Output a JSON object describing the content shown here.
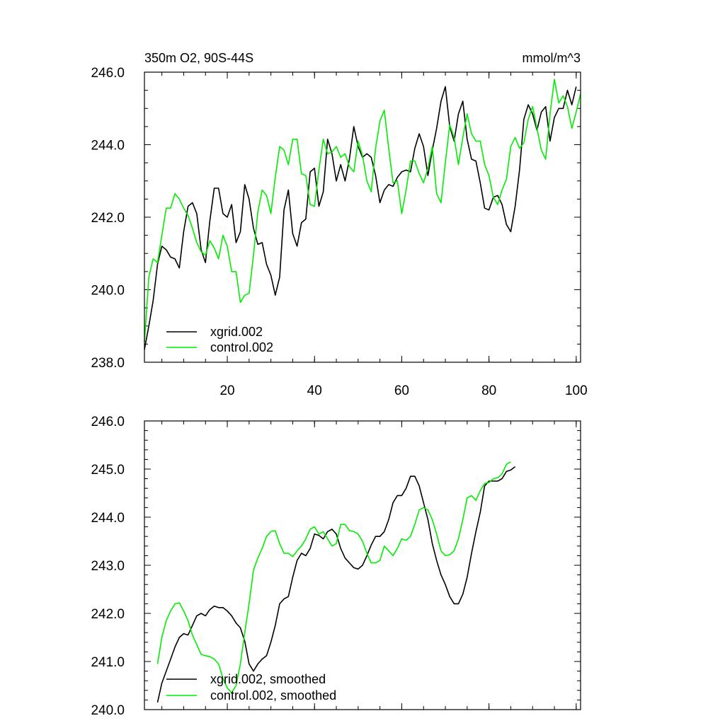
{
  "chart_data": [
    {
      "type": "line",
      "title": "350m O2, 90S-44S",
      "units_label": "mmol/m^3",
      "xlim": [
        1,
        101
      ],
      "ylim": [
        238.0,
        246.0
      ],
      "x_ticks": [
        20,
        40,
        60,
        80,
        100
      ],
      "x_tick_labels": [
        "20",
        "40",
        "60",
        "80",
        "100"
      ],
      "y_ticks": [
        238.0,
        240.0,
        242.0,
        244.0,
        246.0
      ],
      "y_tick_labels": [
        "238.0",
        "240.0",
        "242.0",
        "244.0",
        "246.0"
      ],
      "legend_position": "bottom-left",
      "grid": false,
      "x": [
        1,
        2,
        3,
        4,
        5,
        6,
        7,
        8,
        9,
        10,
        11,
        12,
        13,
        14,
        15,
        16,
        17,
        18,
        19,
        20,
        21,
        22,
        23,
        24,
        25,
        26,
        27,
        28,
        29,
        30,
        31,
        32,
        33,
        34,
        35,
        36,
        37,
        38,
        39,
        40,
        41,
        42,
        43,
        44,
        45,
        46,
        47,
        48,
        49,
        50,
        51,
        52,
        53,
        54,
        55,
        56,
        57,
        58,
        59,
        60,
        61,
        62,
        63,
        64,
        65,
        66,
        67,
        68,
        69,
        70,
        71,
        72,
        73,
        74,
        75,
        76,
        77,
        78,
        79,
        80,
        81,
        82,
        83,
        84,
        85,
        86,
        87,
        88,
        89,
        90,
        91,
        92,
        93,
        94,
        95,
        96,
        97,
        98,
        99,
        100,
        101
      ],
      "series": [
        {
          "name": "xgrid.002",
          "color": "#000000",
          "values": [
            238.35,
            239.0,
            239.7,
            240.7,
            241.2,
            241.1,
            240.9,
            240.85,
            240.6,
            241.6,
            242.3,
            242.4,
            242.1,
            241.1,
            240.75,
            241.9,
            242.8,
            242.8,
            242.1,
            242.0,
            242.35,
            241.3,
            241.6,
            242.9,
            242.5,
            241.7,
            241.25,
            241.3,
            240.7,
            240.4,
            239.85,
            240.35,
            242.2,
            242.75,
            241.55,
            241.2,
            241.85,
            241.95,
            243.25,
            243.35,
            242.3,
            242.7,
            244.15,
            243.75,
            243.0,
            243.45,
            243.0,
            243.6,
            244.5,
            243.95,
            243.65,
            243.75,
            243.65,
            243.15,
            242.4,
            242.75,
            242.9,
            242.85,
            243.1,
            243.25,
            243.3,
            243.25,
            243.9,
            244.3,
            243.95,
            243.15,
            243.85,
            244.45,
            245.2,
            245.6,
            244.5,
            244.1,
            244.85,
            245.2,
            244.15,
            243.6,
            243.55,
            242.95,
            242.25,
            242.2,
            242.55,
            242.6,
            242.35,
            241.8,
            241.6,
            242.3,
            243.3,
            244.7,
            245.1,
            244.85,
            244.4,
            244.9,
            245.05,
            244.1,
            244.75,
            245.0,
            245.0,
            245.5,
            245.1,
            245.6,
            null
          ]
        },
        {
          "name": "control.002",
          "color": "#00ee00",
          "values": [
            238.55,
            240.35,
            240.85,
            240.75,
            241.5,
            242.25,
            242.25,
            242.65,
            242.5,
            242.25,
            242.05,
            241.7,
            241.3,
            241.05,
            240.95,
            241.35,
            241.15,
            240.85,
            241.5,
            241.2,
            240.5,
            240.5,
            239.65,
            239.85,
            239.9,
            240.95,
            242.15,
            242.75,
            242.6,
            242.1,
            243.1,
            243.95,
            243.85,
            243.45,
            244.15,
            244.15,
            243.2,
            243.15,
            242.35,
            242.3,
            243.3,
            244.15,
            243.75,
            243.8,
            243.95,
            243.65,
            243.75,
            243.4,
            243.25,
            244.1,
            243.7,
            243.0,
            242.7,
            243.9,
            244.65,
            244.95,
            243.9,
            242.95,
            243.0,
            242.1,
            242.75,
            243.55,
            243.55,
            243.2,
            242.95,
            243.35,
            243.95,
            242.65,
            242.4,
            243.5,
            244.55,
            244.2,
            243.45,
            244.2,
            244.85,
            244.3,
            244.1,
            244.1,
            243.45,
            243.15,
            242.55,
            242.35,
            242.75,
            243.05,
            243.95,
            244.2,
            243.9,
            244.05,
            244.7,
            245.05,
            244.45,
            243.85,
            243.6,
            244.85,
            245.8,
            245.15,
            245.35,
            245.05,
            244.45,
            244.9,
            245.4
          ]
        }
      ]
    },
    {
      "type": "line",
      "xlim": [
        1,
        101
      ],
      "ylim": [
        240.0,
        246.0
      ],
      "x_ticks": [
        20,
        40,
        60,
        80,
        100
      ],
      "y_ticks": [
        240.0,
        241.0,
        242.0,
        243.0,
        244.0,
        245.0,
        246.0
      ],
      "y_tick_labels": [
        "240.0",
        "241.0",
        "242.0",
        "243.0",
        "244.0",
        "245.0",
        "246.0"
      ],
      "legend_position": "bottom-left",
      "grid": false,
      "x": [
        4,
        5,
        6,
        7,
        8,
        9,
        10,
        11,
        12,
        13,
        14,
        15,
        16,
        17,
        18,
        19,
        20,
        21,
        22,
        23,
        24,
        25,
        26,
        27,
        28,
        29,
        30,
        31,
        32,
        33,
        34,
        35,
        36,
        37,
        38,
        39,
        40,
        41,
        42,
        43,
        44,
        45,
        46,
        47,
        48,
        49,
        50,
        51,
        52,
        53,
        54,
        55,
        56,
        57,
        58,
        59,
        60,
        61,
        62,
        63,
        64,
        65,
        66,
        67,
        68,
        69,
        70,
        71,
        72,
        73,
        74,
        75,
        76,
        77,
        78,
        79,
        80,
        81,
        82,
        83,
        84,
        85,
        86,
        87,
        88,
        89,
        90,
        91,
        92,
        93,
        94,
        95,
        96,
        97,
        98
      ],
      "series": [
        {
          "name": "xgrid.002, smoothed",
          "color": "#000000",
          "values": [
            240.15,
            240.55,
            240.8,
            241.05,
            241.3,
            241.5,
            241.58,
            241.55,
            241.75,
            241.95,
            242.0,
            241.95,
            242.08,
            242.15,
            242.12,
            242.12,
            242.05,
            241.95,
            241.8,
            241.7,
            241.42,
            240.95,
            240.8,
            240.95,
            241.05,
            241.12,
            241.4,
            241.75,
            242.2,
            242.3,
            242.35,
            242.75,
            243.1,
            243.25,
            243.2,
            243.35,
            243.65,
            243.62,
            243.55,
            243.7,
            243.75,
            243.65,
            243.35,
            243.15,
            243.05,
            242.95,
            242.92,
            243.0,
            243.2,
            243.42,
            243.6,
            243.6,
            243.7,
            243.95,
            244.3,
            244.45,
            244.45,
            244.6,
            244.85,
            244.85,
            244.65,
            244.3,
            243.95,
            243.45,
            243.1,
            242.8,
            242.6,
            242.35,
            242.2,
            242.2,
            242.4,
            242.75,
            243.25,
            243.7,
            244.1,
            244.65,
            244.75,
            244.75,
            244.75,
            244.8,
            244.95,
            244.98,
            245.05,
            null,
            null,
            null,
            null,
            null,
            null,
            null,
            null,
            null,
            null,
            null,
            null
          ]
        },
        {
          "name": "control.002, smoothed",
          "color": "#00ee00",
          "values": [
            240.95,
            241.5,
            241.85,
            242.05,
            242.2,
            242.22,
            242.05,
            241.85,
            241.55,
            241.35,
            241.15,
            241.12,
            241.1,
            241.05,
            240.95,
            240.65,
            240.45,
            240.35,
            240.5,
            240.95,
            241.6,
            242.2,
            242.9,
            243.15,
            243.35,
            243.6,
            243.7,
            243.72,
            243.45,
            243.25,
            243.25,
            243.18,
            243.3,
            243.4,
            243.55,
            243.75,
            243.8,
            243.65,
            243.7,
            243.55,
            243.4,
            243.45,
            243.85,
            243.85,
            243.72,
            243.7,
            243.65,
            243.5,
            243.25,
            243.05,
            243.05,
            243.1,
            243.4,
            243.3,
            243.2,
            243.35,
            243.55,
            243.52,
            243.6,
            243.85,
            244.15,
            244.2,
            244.15,
            243.95,
            243.65,
            243.3,
            243.2,
            243.22,
            243.3,
            243.55,
            243.95,
            244.4,
            244.45,
            244.35,
            244.55,
            244.7,
            244.72,
            244.8,
            244.82,
            244.9,
            245.1,
            245.15,
            null,
            null,
            null,
            null,
            null,
            null,
            null,
            null,
            null,
            null,
            null,
            null,
            null
          ]
        }
      ]
    }
  ]
}
